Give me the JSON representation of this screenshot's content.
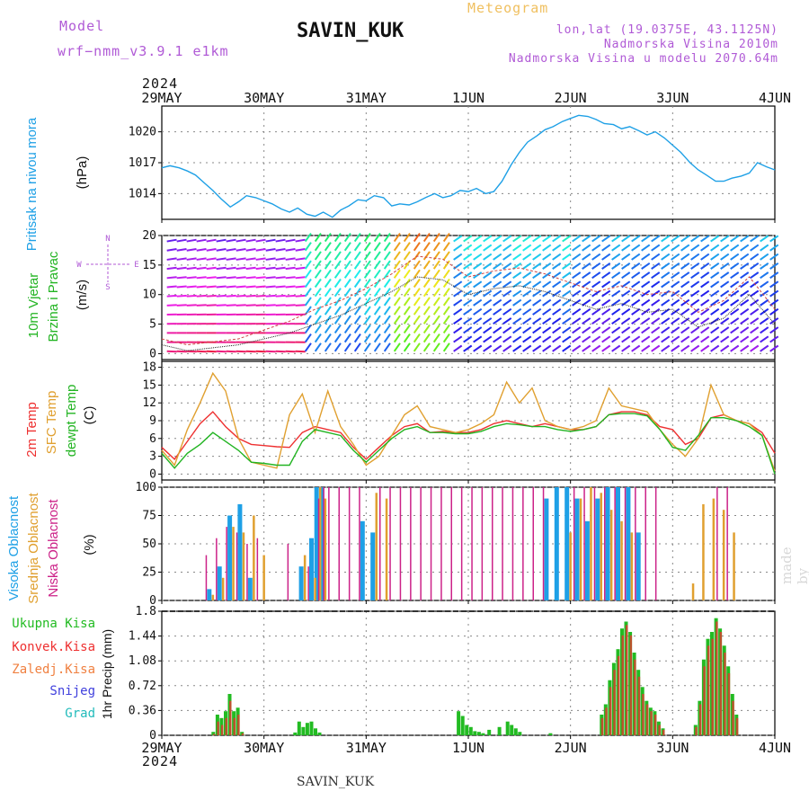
{
  "header": {
    "model_label": "Model",
    "model_name": "wrf−nmm_v3.9.1  e1km",
    "station": "SAVIN_KUK",
    "meteogram": "Meteogram",
    "lonlat": "lon,lat (19.0375E, 43.1125N)",
    "elevation": "Nadmorska Visina 2010m",
    "model_elevation": "Nadmorska Visina u modelu 2070.64m",
    "year": "2024",
    "footer": "SAVIN_KUK",
    "credit": "made by Angel"
  },
  "time_axis": {
    "labels": [
      "29MAY",
      "30MAY",
      "31MAY",
      "1JUN",
      "2JUN",
      "3JUN",
      "4JUN"
    ]
  },
  "panels": {
    "pressure": {
      "ylabel_1": "Pritisak na nivou mora",
      "unit": "(hPa)",
      "ticks": [
        "1014",
        "1017",
        "1020"
      ]
    },
    "wind": {
      "ylabel_1": "10m Vjetar",
      "ylabel_2": "Brzina i Pravac",
      "unit": "(m/s)",
      "ticks": [
        "0",
        "5",
        "10",
        "15",
        "20"
      ],
      "rose_n": "N",
      "rose_s": "S",
      "rose_w": "W",
      "rose_e": "E"
    },
    "temp": {
      "ylabel_1": "2m Temp",
      "ylabel_2": "SFC Temp",
      "ylabel_3": "dewpt Temp",
      "unit": "(C)",
      "ticks": [
        "0",
        "3",
        "6",
        "9",
        "12",
        "15",
        "18"
      ]
    },
    "cloud": {
      "ylabel_1": "Visoka Oblacnost",
      "ylabel_2": "Srednja Oblacnost",
      "ylabel_3": "Niska Oblacnost",
      "unit": "(%)",
      "ticks": [
        "0",
        "25",
        "50",
        "75",
        "100"
      ]
    },
    "precip": {
      "legend_1": "Ukupna Kisa",
      "legend_2": "Konvek.Kisa",
      "legend_3": "Zaledj.Kisa",
      "legend_4": "Snijeg",
      "legend_5": "Grad",
      "ylabel": "1hr Precip (mm)",
      "ticks": [
        "0",
        "0.36",
        "0.72",
        "1.08",
        "1.44",
        "1.8"
      ]
    }
  },
  "colors": {
    "pressure": "#1ea0e6",
    "temp_2m": "#ee3030",
    "temp_sfc": "#e0a030",
    "temp_dewpt": "#22b422",
    "cloud_high": "#1ea0e6",
    "cloud_mid": "#e0a030",
    "cloud_low": "#cc2288",
    "precip_total": "#22bb22",
    "precip_conv": "#ee3030",
    "precip_frozen": "#f08040",
    "precip_snow": "#4040dd",
    "precip_hail": "#22bbbb",
    "left_rose": "#b05ad6"
  },
  "chart_data": [
    {
      "type": "line",
      "title": "Pritisak na nivou mora",
      "ylabel": "(hPa)",
      "ylim": [
        1011.5,
        1022.5
      ],
      "x_days": [
        0,
        0.08,
        0.17,
        0.25,
        0.33,
        0.42,
        0.5,
        0.58,
        0.67,
        0.75,
        0.83,
        0.92,
        1,
        1.08,
        1.17,
        1.25,
        1.33,
        1.42,
        1.5,
        1.58,
        1.67,
        1.75,
        1.83,
        1.92,
        2,
        2.08,
        2.17,
        2.25,
        2.33,
        2.42,
        2.5,
        2.58,
        2.67,
        2.75,
        2.83,
        2.92,
        3,
        3.08,
        3.17,
        3.25,
        3.33,
        3.42,
        3.5,
        3.58,
        3.67,
        3.75,
        3.83,
        3.92,
        4,
        4.08,
        4.17,
        4.25,
        4.33,
        4.42,
        4.5,
        4.58,
        4.67,
        4.75,
        4.83,
        4.92,
        5,
        5.08,
        5.17,
        5.25,
        5.33,
        5.42,
        5.5,
        5.58,
        5.67,
        5.75,
        5.83,
        5.92,
        6
      ],
      "series": [
        {
          "name": "Pritisak na nivou mora",
          "values": [
            1016.5,
            1016.7,
            1016.5,
            1016.2,
            1015.8,
            1015.0,
            1014.3,
            1013.5,
            1012.7,
            1013.2,
            1013.8,
            1013.6,
            1013.3,
            1013.0,
            1012.5,
            1012.2,
            1012.6,
            1012.0,
            1011.8,
            1012.2,
            1011.7,
            1012.4,
            1012.8,
            1013.4,
            1013.3,
            1013.8,
            1013.6,
            1012.8,
            1013.0,
            1012.9,
            1013.2,
            1013.6,
            1014.0,
            1013.6,
            1013.8,
            1014.3,
            1014.2,
            1014.5,
            1014.0,
            1014.2,
            1015.2,
            1016.8,
            1018.0,
            1019.0,
            1019.6,
            1020.2,
            1020.5,
            1021.0,
            1021.3,
            1021.6,
            1021.5,
            1021.2,
            1020.8,
            1020.7,
            1020.3,
            1020.5,
            1020.1,
            1019.7,
            1020.0,
            1019.4,
            1018.7,
            1018.0,
            1017.0,
            1016.3,
            1015.8,
            1015.2,
            1015.2,
            1015.5,
            1015.7,
            1016.0,
            1017.0,
            1016.6,
            1016.3
          ]
        }
      ]
    },
    {
      "type": "line",
      "title": "10m Vjetar Brzina i Pravac",
      "ylabel": "(m/s)",
      "ylim": [
        -1,
        20
      ],
      "x_days": [
        0,
        0.25,
        0.5,
        0.75,
        1,
        1.25,
        1.5,
        1.75,
        2,
        2.25,
        2.5,
        2.75,
        3,
        3.25,
        3.5,
        3.75,
        4,
        4.25,
        4.5,
        4.75,
        5,
        5.25,
        5.5,
        5.75,
        6
      ],
      "series": [
        {
          "name": "wind speed",
          "values": [
            1.5,
            0.5,
            1.0,
            1.5,
            2.5,
            3.5,
            5.0,
            6.5,
            8.5,
            10.5,
            13.0,
            12.5,
            10.0,
            11.0,
            11.5,
            10.5,
            9.0,
            7.5,
            8.5,
            7.0,
            7.5,
            4.5,
            6.0,
            10.0,
            5.0
          ]
        },
        {
          "name": "gust",
          "values": [
            2.5,
            1.5,
            2.0,
            2.5,
            4.0,
            5.5,
            7.5,
            9.0,
            11.0,
            13.5,
            16.5,
            16.0,
            13.0,
            14.0,
            14.5,
            13.5,
            12.0,
            10.5,
            11.5,
            10.0,
            10.5,
            7.0,
            9.0,
            13.0,
            7.5
          ]
        }
      ]
    },
    {
      "type": "line",
      "title": "2m Temp / SFC Temp / dewpt Temp",
      "ylabel": "(C)",
      "ylim": [
        -1,
        19
      ],
      "x_days": [
        0,
        0.125,
        0.25,
        0.375,
        0.5,
        0.625,
        0.75,
        0.875,
        1,
        1.125,
        1.25,
        1.375,
        1.5,
        1.625,
        1.75,
        1.875,
        2,
        2.125,
        2.25,
        2.375,
        2.5,
        2.625,
        2.75,
        2.875,
        3,
        3.125,
        3.25,
        3.375,
        3.5,
        3.625,
        3.75,
        3.875,
        4,
        4.125,
        4.25,
        4.375,
        4.5,
        4.625,
        4.75,
        4.875,
        5,
        5.125,
        5.25,
        5.375,
        5.5,
        5.625,
        5.75,
        5.875,
        6
      ],
      "series": [
        {
          "name": "2m Temp",
          "values": [
            4.5,
            2.5,
            5.5,
            8.5,
            10.5,
            8.0,
            6.0,
            5.0,
            4.8,
            4.6,
            4.5,
            7.0,
            8.0,
            7.5,
            7.0,
            4.5,
            2.5,
            4.5,
            6.5,
            8.0,
            8.5,
            7.0,
            7.2,
            7.0,
            7.0,
            7.5,
            8.5,
            9.0,
            8.5,
            8.0,
            8.5,
            8.0,
            7.5,
            7.5,
            8.0,
            10.0,
            10.5,
            10.5,
            10.0,
            8.0,
            7.5,
            5.0,
            6.0,
            9.5,
            10.0,
            9.0,
            8.5,
            7.0,
            3.5
          ]
        },
        {
          "name": "SFC Temp",
          "values": [
            4.0,
            1.5,
            7.5,
            12.0,
            17.0,
            14.0,
            6.0,
            2.0,
            1.5,
            1.0,
            10.0,
            13.5,
            7.0,
            14.0,
            8.0,
            5.0,
            1.5,
            3.0,
            6.5,
            10.0,
            11.5,
            8.0,
            7.5,
            7.0,
            7.5,
            8.5,
            10.0,
            15.5,
            12.0,
            14.5,
            9.0,
            8.0,
            7.5,
            8.0,
            9.0,
            14.5,
            11.5,
            11.0,
            10.5,
            7.5,
            5.0,
            3.0,
            6.0,
            15.0,
            10.0,
            9.0,
            8.5,
            6.5,
            0.5
          ]
        },
        {
          "name": "dewpt Temp",
          "values": [
            3.5,
            1.0,
            3.5,
            5.0,
            7.0,
            5.5,
            4.0,
            2.0,
            1.8,
            1.5,
            1.5,
            5.5,
            7.5,
            7.0,
            6.5,
            4.0,
            2.0,
            4.0,
            6.0,
            7.5,
            8.0,
            7.0,
            7.0,
            6.8,
            6.8,
            7.2,
            8.0,
            8.5,
            8.3,
            8.0,
            8.0,
            7.5,
            7.2,
            7.5,
            8.0,
            10.0,
            10.2,
            10.2,
            9.8,
            7.5,
            4.5,
            4.0,
            6.5,
            9.5,
            9.5,
            9.0,
            8.0,
            6.5,
            0.0
          ]
        }
      ]
    },
    {
      "type": "bar",
      "title": "Visoka / Srednja / Niska Oblacnost",
      "ylabel": "(%)",
      "ylim": [
        0,
        100
      ],
      "x_days": [
        0.4,
        0.5,
        0.6,
        0.7,
        0.8,
        0.9,
        1.0,
        1.1,
        1.2,
        1.4,
        1.5,
        1.55,
        1.6,
        1.7,
        1.8,
        1.9,
        2.0,
        2.1,
        2.2,
        2.3,
        2.4,
        2.5,
        2.6,
        2.7,
        2.8,
        2.9,
        3.0,
        3.1,
        3.2,
        3.3,
        3.4,
        3.5,
        3.6,
        3.7,
        3.8,
        3.9,
        4.0,
        4.1,
        4.2,
        4.3,
        4.4,
        4.5,
        4.6,
        4.7,
        4.8,
        5.0,
        5.1,
        5.2,
        5.3,
        5.4,
        5.5,
        5.6,
        5.7,
        5.8
      ],
      "series": [
        {
          "name": "Visoka Oblacnost",
          "values": [
            0,
            10,
            30,
            75,
            85,
            20,
            0,
            0,
            0,
            30,
            55,
            100,
            100,
            0,
            0,
            0,
            70,
            60,
            0,
            0,
            0,
            0,
            0,
            0,
            0,
            0,
            0,
            0,
            0,
            0,
            0,
            0,
            0,
            0,
            90,
            100,
            100,
            90,
            70,
            90,
            100,
            100,
            100,
            60,
            0,
            0,
            0,
            0,
            0,
            0,
            0,
            0,
            0,
            0
          ]
        },
        {
          "name": "Srednja Oblacnost",
          "values": [
            0,
            5,
            20,
            65,
            60,
            75,
            40,
            0,
            0,
            40,
            20,
            100,
            90,
            0,
            0,
            0,
            0,
            95,
            90,
            0,
            0,
            0,
            0,
            0,
            0,
            0,
            0,
            0,
            0,
            0,
            0,
            0,
            0,
            0,
            0,
            0,
            60,
            90,
            100,
            95,
            80,
            70,
            60,
            0,
            0,
            0,
            0,
            15,
            85,
            90,
            80,
            60,
            0,
            0
          ]
        },
        {
          "name": "Niska Oblacnost",
          "values": [
            40,
            55,
            65,
            60,
            50,
            55,
            0,
            0,
            50,
            30,
            90,
            100,
            100,
            100,
            100,
            100,
            0,
            100,
            100,
            100,
            100,
            100,
            100,
            100,
            100,
            100,
            100,
            100,
            100,
            100,
            100,
            100,
            100,
            100,
            0,
            0,
            100,
            100,
            100,
            100,
            100,
            100,
            100,
            100,
            100,
            0,
            0,
            0,
            0,
            100,
            100,
            0,
            0,
            0
          ]
        }
      ]
    },
    {
      "type": "bar",
      "title": "1hr Precip",
      "ylabel": "1hr Precip (mm)",
      "ylim": [
        0,
        1.8
      ],
      "x_days": [
        0.5,
        0.54,
        0.58,
        0.62,
        0.66,
        0.7,
        0.74,
        0.78,
        1.3,
        1.34,
        1.38,
        1.42,
        1.46,
        1.5,
        1.54,
        2.9,
        2.94,
        2.98,
        3.02,
        3.06,
        3.1,
        3.14,
        3.2,
        3.3,
        3.38,
        3.42,
        3.46,
        3.5,
        3.8,
        4.3,
        4.34,
        4.38,
        4.42,
        4.46,
        4.5,
        4.54,
        4.58,
        4.62,
        4.66,
        4.7,
        4.74,
        4.78,
        4.82,
        4.86,
        4.9,
        5.22,
        5.26,
        5.3,
        5.34,
        5.38,
        5.42,
        5.46,
        5.5,
        5.54,
        5.58,
        5.62
      ],
      "series": [
        {
          "name": "Ukupna Kisa",
          "values": [
            0.05,
            0.3,
            0.25,
            0.35,
            0.6,
            0.35,
            0.4,
            0.05,
            0.04,
            0.2,
            0.12,
            0.18,
            0.2,
            0.1,
            0.04,
            0.35,
            0.28,
            0.15,
            0.12,
            0.06,
            0.05,
            0.03,
            0.08,
            0.12,
            0.2,
            0.15,
            0.1,
            0.05,
            0.03,
            0.3,
            0.45,
            0.8,
            1.05,
            1.25,
            1.55,
            1.65,
            1.5,
            1.2,
            0.95,
            0.7,
            0.5,
            0.4,
            0.35,
            0.2,
            0.1,
            0.15,
            0.5,
            1.1,
            1.4,
            1.5,
            1.7,
            1.55,
            1.3,
            1.0,
            0.6,
            0.3
          ]
        },
        {
          "name": "Konvek.Kisa",
          "values": [
            0.02,
            0.2,
            0.15,
            0.25,
            0.5,
            0.25,
            0.3,
            0.03,
            0,
            0,
            0,
            0,
            0,
            0,
            0,
            0,
            0,
            0,
            0,
            0,
            0,
            0,
            0,
            0,
            0,
            0,
            0,
            0,
            0,
            0.25,
            0.4,
            0.7,
            0.95,
            1.15,
            1.45,
            1.6,
            1.45,
            1.1,
            0.85,
            0.6,
            0.45,
            0.35,
            0.3,
            0.15,
            0.08,
            0.12,
            0.45,
            1.0,
            1.3,
            1.4,
            1.65,
            1.5,
            1.2,
            0.9,
            0.5,
            0.25
          ]
        }
      ]
    }
  ]
}
